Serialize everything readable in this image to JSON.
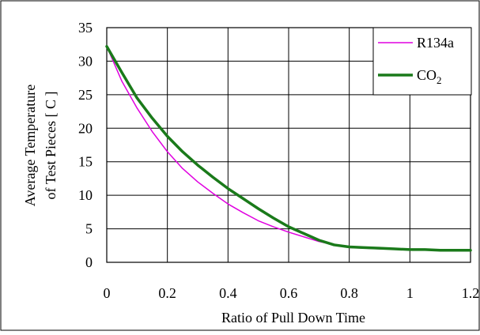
{
  "chart_data": {
    "type": "line",
    "title": "",
    "xlabel": "Ratio of Pull Down Time",
    "ylabel_line1": "Average Temperature",
    "ylabel_line2": "of Test Pieces  [ C ]",
    "xlim": [
      0,
      1.2
    ],
    "ylim": [
      0,
      35
    ],
    "x_ticks": [
      0,
      0.2,
      0.4,
      0.6,
      0.8,
      1,
      1.2
    ],
    "x_tick_labels": [
      "0",
      "0.2",
      "0.4",
      "0.6",
      "0.8",
      "1",
      "1.2"
    ],
    "y_ticks": [
      0,
      5,
      10,
      15,
      20,
      25,
      30,
      35
    ],
    "y_tick_labels": [
      "0",
      "5",
      "10",
      "15",
      "20",
      "25",
      "30",
      "35"
    ],
    "grid": true,
    "legend_position": "top-right",
    "series": [
      {
        "name": "R134a",
        "color": "#e000e0",
        "x": [
          0,
          0.05,
          0.1,
          0.15,
          0.2,
          0.25,
          0.3,
          0.35,
          0.4,
          0.45,
          0.5,
          0.55,
          0.6,
          0.65,
          0.7,
          0.75,
          0.8,
          0.85,
          0.9,
          0.95,
          1.0,
          1.05,
          1.1,
          1.15,
          1.2
        ],
        "values": [
          32.2,
          27.0,
          23.0,
          19.5,
          16.5,
          14.0,
          12.0,
          10.3,
          8.7,
          7.4,
          6.2,
          5.3,
          4.5,
          3.8,
          3.1,
          2.6,
          2.2,
          2.1,
          2.0,
          2.0,
          1.9,
          1.9,
          1.8,
          1.8,
          1.8
        ]
      },
      {
        "name": "CO₂",
        "color": "#1a7a1a",
        "x": [
          0,
          0.05,
          0.1,
          0.15,
          0.2,
          0.25,
          0.3,
          0.35,
          0.4,
          0.45,
          0.5,
          0.55,
          0.6,
          0.65,
          0.7,
          0.75,
          0.8,
          0.85,
          0.9,
          0.95,
          1.0,
          1.05,
          1.1,
          1.15,
          1.2
        ],
        "values": [
          32.2,
          28.3,
          24.5,
          21.5,
          18.8,
          16.5,
          14.5,
          12.7,
          11.0,
          9.5,
          8.0,
          6.6,
          5.3,
          4.3,
          3.3,
          2.6,
          2.3,
          2.2,
          2.1,
          2.0,
          1.9,
          1.9,
          1.8,
          1.8,
          1.8
        ]
      }
    ],
    "legend_labels": {
      "r134a": "R134a",
      "co2_main": "CO",
      "co2_sub": "2"
    }
  }
}
